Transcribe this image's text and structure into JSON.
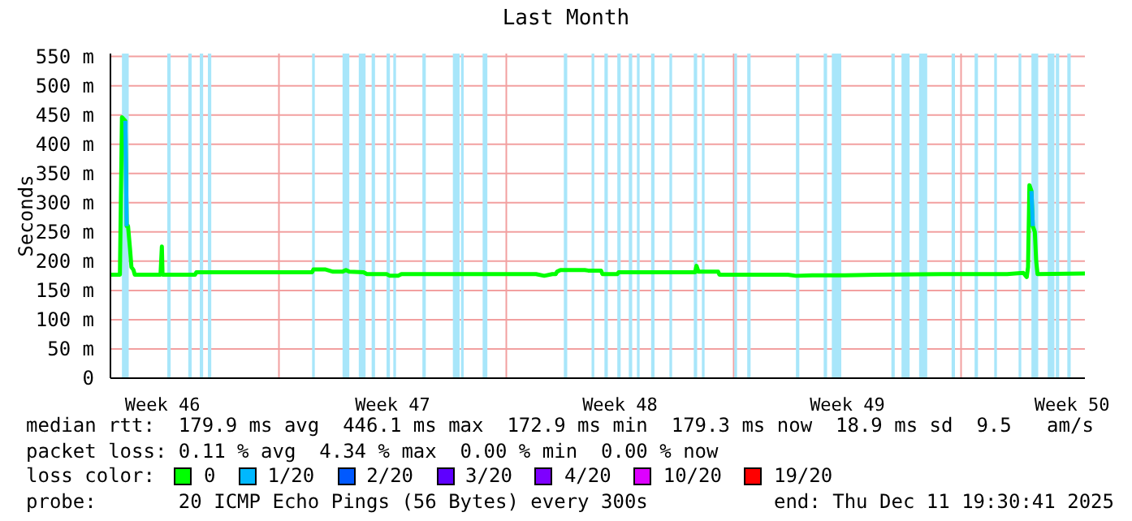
{
  "chart_data": {
    "type": "line",
    "title": "Last Month",
    "ylabel": "Seconds",
    "x": [
      "2025-11-11T19:30",
      "2025-11-12T02:30",
      "2025-11-12T04:00",
      "2025-11-12T06:30",
      "2025-11-12T07:30",
      "2025-11-12T08:30",
      "2025-11-12T10:00",
      "2025-11-12T11:00",
      "2025-11-12T12:30",
      "2025-11-12T13:30",
      "2025-11-13T08:30",
      "2025-11-13T09:30",
      "2025-11-13T10:00",
      "2025-11-14T10:00",
      "2025-11-14T11:00",
      "2025-11-18T00:30",
      "2025-11-18T01:30",
      "2025-11-18T10:00",
      "2025-11-18T16:00",
      "2025-11-18T23:00",
      "2025-11-19T01:30",
      "2025-11-19T04:00",
      "2025-11-19T14:30",
      "2025-11-19T17:00",
      "2025-11-20T07:30",
      "2025-11-20T10:00",
      "2025-11-20T16:00",
      "2025-11-20T18:30",
      "2025-11-24T22:00",
      "2025-11-25T04:00",
      "2025-11-25T10:00",
      "2025-11-25T12:30",
      "2025-11-25T13:30",
      "2025-11-25T16:00",
      "2025-11-26T10:00",
      "2025-11-26T12:30",
      "2025-11-26T22:00",
      "2025-11-26T23:00",
      "2025-11-27T10:00",
      "2025-11-27T11:00",
      "2025-11-29T19:30",
      "2025-11-29T20:30",
      "2025-11-29T22:00",
      "2025-11-30T12:30",
      "2025-11-30T13:30",
      "2025-12-02T16:00",
      "2025-12-02T22:00",
      "2025-12-03T10:00",
      "2025-12-04T10:00",
      "2025-12-05T10:00",
      "2025-12-07T10:00",
      "2025-12-09T10:00",
      "2025-12-09T22:00",
      "2025-12-10T00:30",
      "2025-12-10T01:30",
      "2025-12-10T02:30",
      "2025-12-10T04:00",
      "2025-12-10T05:00",
      "2025-12-10T06:30",
      "2025-12-10T07:30",
      "2025-12-10T08:30",
      "2025-12-11T19:30"
    ],
    "series": [
      {
        "name": "0",
        "color": "#00ff00",
        "values": [
          177,
          177,
          446,
          440,
          260,
          260,
          220,
          190,
          185,
          177,
          177,
          225,
          177,
          177,
          181,
          181,
          186,
          186,
          182,
          182,
          185,
          182,
          181,
          178,
          178,
          175,
          175,
          178,
          178,
          175,
          178,
          178,
          182,
          185,
          185,
          184,
          184,
          178,
          178,
          181,
          181,
          192,
          182,
          182,
          177,
          177,
          175,
          176,
          176,
          177,
          178,
          178,
          180,
          173,
          190,
          330,
          320,
          260,
          250,
          200,
          178,
          179
        ]
      },
      {
        "name": "1/20",
        "color": "#00b8ff",
        "x": [
          "2025-11-12T06:30",
          "2025-11-12T07:30",
          "2025-11-12T10:00",
          "2025-12-10T04:00",
          "2025-12-10T05:00"
        ],
        "values": [
          440,
          260,
          null,
          320,
          260
        ]
      },
      {
        "name": "2/20",
        "color": "#0059ff",
        "values": [
          null,
          null,
          null,
          null,
          null,
          null,
          null,
          null,
          null,
          null,
          null,
          null,
          null,
          null,
          null,
          null,
          null,
          null,
          null,
          null,
          null,
          null,
          null,
          null,
          null,
          null,
          null,
          null,
          null,
          null,
          null,
          null,
          null,
          null,
          null,
          null,
          null,
          null,
          null,
          null,
          null,
          null,
          null,
          null,
          null,
          null,
          null,
          null,
          null,
          null,
          null,
          null,
          null,
          null,
          null,
          null,
          null,
          null,
          null,
          null,
          null,
          null
        ]
      },
      {
        "name": "3/20",
        "color": "#5e00ff",
        "values": [
          null,
          null,
          null,
          null,
          null,
          null,
          null,
          null,
          null,
          null,
          null,
          null,
          null,
          null,
          null,
          null,
          null,
          null,
          null,
          null,
          null,
          null,
          null,
          null,
          null,
          null,
          null,
          null,
          null,
          null,
          null,
          null,
          null,
          null,
          null,
          null,
          null,
          null,
          null,
          null,
          null,
          null,
          null,
          null,
          null,
          null,
          null,
          null,
          null,
          null,
          null,
          null,
          null,
          null,
          null,
          null,
          null,
          null,
          null,
          null,
          null,
          null
        ]
      },
      {
        "name": "4/20",
        "color": "#7e00ff",
        "values": [
          null,
          null,
          null,
          null,
          null,
          null,
          null,
          null,
          null,
          null,
          null,
          null,
          null,
          null,
          null,
          null,
          null,
          null,
          null,
          null,
          null,
          null,
          null,
          null,
          null,
          null,
          null,
          null,
          null,
          null,
          null,
          null,
          null,
          null,
          null,
          null,
          null,
          null,
          null,
          null,
          null,
          null,
          null,
          null,
          null,
          null,
          null,
          null,
          null,
          null,
          null,
          null,
          null,
          null,
          null,
          null,
          null,
          null,
          null,
          null,
          null,
          null
        ]
      },
      {
        "name": "10/20",
        "color": "#dd00ff",
        "values": [
          null,
          null,
          null,
          null,
          null,
          null,
          null,
          null,
          null,
          null,
          null,
          null,
          null,
          null,
          null,
          null,
          null,
          null,
          null,
          null,
          null,
          null,
          null,
          null,
          null,
          null,
          null,
          null,
          null,
          null,
          null,
          null,
          null,
          null,
          null,
          null,
          null,
          null,
          null,
          null,
          null,
          null,
          null,
          null,
          null,
          null,
          null,
          null,
          null,
          null,
          null,
          null,
          null,
          null,
          null,
          null,
          null,
          null,
          null,
          null,
          null,
          null
        ]
      },
      {
        "name": "19/20",
        "color": "#ff0000",
        "values": [
          null,
          null,
          null,
          null,
          null,
          null,
          null,
          null,
          null,
          null,
          null,
          null,
          null,
          null,
          null,
          null,
          null,
          null,
          null,
          null,
          null,
          null,
          null,
          null,
          null,
          null,
          null,
          null,
          null,
          null,
          null,
          null,
          null,
          null,
          null,
          null,
          null,
          null,
          null,
          null,
          null,
          null,
          null,
          null,
          null,
          null,
          null,
          null,
          null,
          null,
          null,
          null,
          null,
          null,
          null,
          null,
          null,
          null,
          null,
          null,
          null,
          null
        ]
      }
    ],
    "legend": "bottom",
    "legend_title": "loss color:",
    "xlim": [
      "2025-11-11T19:30",
      "2025-12-11T19:30"
    ],
    "xticks": [
      {
        "value": "2025-11-13T10:00",
        "label": "Week 46"
      },
      {
        "value": "2025-11-17",
        "label": null
      },
      {
        "value": "2025-11-20T12:00",
        "label": "Week 47"
      },
      {
        "value": "2025-11-24",
        "label": null
      },
      {
        "value": "2025-11-27T12:00",
        "label": "Week 48"
      },
      {
        "value": "2025-12-01",
        "label": null
      },
      {
        "value": "2025-12-04T12:00",
        "label": "Week 49"
      },
      {
        "value": "2025-12-08",
        "label": null
      },
      {
        "value": "2025-12-11T10:00",
        "label": "Week 50"
      }
    ],
    "ylim": [
      0,
      555
    ],
    "yticks": [
      {
        "value": 0,
        "label": "0"
      },
      {
        "value": 50,
        "label": "50 m"
      },
      {
        "value": 100,
        "label": "100 m"
      },
      {
        "value": 150,
        "label": "150 m"
      },
      {
        "value": 200,
        "label": "200 m"
      },
      {
        "value": 250,
        "label": "250 m"
      },
      {
        "value": 300,
        "label": "300 m"
      },
      {
        "value": 350,
        "label": "350 m"
      },
      {
        "value": 400,
        "label": "400 m"
      },
      {
        "value": 450,
        "label": "450 m"
      },
      {
        "value": 500,
        "label": "500 m"
      },
      {
        "value": 550,
        "label": "550 m"
      }
    ],
    "grid": true,
    "bands": [
      {
        "axis": "x",
        "from": "2025-11-12T04:00",
        "to": "2025-11-12T09:00",
        "color": "#a8e6fa"
      },
      {
        "axis": "x",
        "from": "2025-11-13T13:30",
        "to": "2025-11-13T16:00",
        "color": "#a8e6fa"
      },
      {
        "axis": "x",
        "from": "2025-11-14T05:00",
        "to": "2025-11-14T07:30",
        "color": "#a8e6fa"
      },
      {
        "axis": "x",
        "from": "2025-11-14T13:30",
        "to": "2025-11-14T16:00",
        "color": "#a8e6fa"
      },
      {
        "axis": "x",
        "from": "2025-11-14T19:30",
        "to": "2025-11-14T22:00",
        "color": "#a8e6fa"
      },
      {
        "axis": "x",
        "from": "2025-11-18T00:30",
        "to": "2025-11-18T02:30",
        "color": "#a8e6fa"
      },
      {
        "axis": "x",
        "from": "2025-11-18T23:00",
        "to": "2025-11-19T04:00",
        "color": "#a8e6fa"
      },
      {
        "axis": "x",
        "from": "2025-11-19T11:00",
        "to": "2025-11-19T16:00",
        "color": "#a8e6fa"
      },
      {
        "axis": "x",
        "from": "2025-11-19T20:30",
        "to": "2025-11-19T23:00",
        "color": "#a8e6fa"
      },
      {
        "axis": "x",
        "from": "2025-11-20T07:30",
        "to": "2025-11-20T10:00",
        "color": "#a8e6fa"
      },
      {
        "axis": "x",
        "from": "2025-11-20T12:30",
        "to": "2025-11-20T14:30",
        "color": "#a8e6fa"
      },
      {
        "axis": "x",
        "from": "2025-11-21T10:00",
        "to": "2025-11-21T12:30",
        "color": "#a8e6fa"
      },
      {
        "axis": "x",
        "from": "2025-11-22T08:30",
        "to": "2025-11-22T13:30",
        "color": "#a8e6fa"
      },
      {
        "axis": "x",
        "from": "2025-11-22T14:30",
        "to": "2025-11-22T16:30",
        "color": "#a8e6fa"
      },
      {
        "axis": "x",
        "from": "2025-11-23T06:30",
        "to": "2025-11-23T10:00",
        "color": "#a8e6fa"
      },
      {
        "axis": "x",
        "from": "2025-11-25T18:30",
        "to": "2025-11-25T21:00",
        "color": "#a8e6fa"
      },
      {
        "axis": "x",
        "from": "2025-11-26T15:00",
        "to": "2025-11-26T17:00",
        "color": "#a8e6fa"
      },
      {
        "axis": "x",
        "from": "2025-11-27T00:30",
        "to": "2025-11-27T03:00",
        "color": "#a8e6fa"
      },
      {
        "axis": "x",
        "from": "2025-11-27T10:00",
        "to": "2025-11-27T12:30",
        "color": "#a8e6fa"
      },
      {
        "axis": "x",
        "from": "2025-11-27T18:30",
        "to": "2025-11-27T21:00",
        "color": "#a8e6fa"
      },
      {
        "axis": "x",
        "from": "2025-11-28T00:30",
        "to": "2025-11-28T02:30",
        "color": "#a8e6fa"
      },
      {
        "axis": "x",
        "from": "2025-11-28T11:00",
        "to": "2025-11-28T13:30",
        "color": "#a8e6fa"
      },
      {
        "axis": "x",
        "from": "2025-11-29T00:30",
        "to": "2025-11-29T02:30",
        "color": "#a8e6fa"
      },
      {
        "axis": "x",
        "from": "2025-11-29T18:30",
        "to": "2025-11-29T21:00",
        "color": "#a8e6fa"
      },
      {
        "axis": "x",
        "from": "2025-11-30T00:30",
        "to": "2025-11-30T02:30",
        "color": "#a8e6fa"
      },
      {
        "axis": "x",
        "from": "2025-12-01T00:30",
        "to": "2025-12-01T02:30",
        "color": "#a8e6fa"
      },
      {
        "axis": "x",
        "from": "2025-12-01T10:00",
        "to": "2025-12-01T12:30",
        "color": "#a8e6fa"
      },
      {
        "axis": "x",
        "from": "2025-12-02T22:00",
        "to": "2025-12-03T00:30",
        "color": "#a8e6fa"
      },
      {
        "axis": "x",
        "from": "2025-12-03T18:30",
        "to": "2025-12-03T21:00",
        "color": "#a8e6fa"
      },
      {
        "axis": "x",
        "from": "2025-12-04T00:30",
        "to": "2025-12-04T07:30",
        "color": "#a8e6fa"
      },
      {
        "axis": "x",
        "from": "2025-12-05T20:30",
        "to": "2025-12-05T23:00",
        "color": "#a8e6fa"
      },
      {
        "axis": "x",
        "from": "2025-12-06T04:00",
        "to": "2025-12-06T10:00",
        "color": "#a8e6fa"
      },
      {
        "axis": "x",
        "from": "2025-12-06T17:00",
        "to": "2025-12-06T23:00",
        "color": "#a8e6fa"
      },
      {
        "axis": "x",
        "from": "2025-12-07T17:00",
        "to": "2025-12-07T19:30",
        "color": "#a8e6fa"
      },
      {
        "axis": "x",
        "from": "2025-12-08T10:00",
        "to": "2025-12-08T12:30",
        "color": "#a8e6fa"
      },
      {
        "axis": "x",
        "from": "2025-12-09T00:30",
        "to": "2025-12-09T02:30",
        "color": "#a8e6fa"
      },
      {
        "axis": "x",
        "from": "2025-12-09T18:30",
        "to": "2025-12-09T20:30",
        "color": "#a8e6fa"
      },
      {
        "axis": "x",
        "from": "2025-12-10T04:00",
        "to": "2025-12-10T09:00",
        "color": "#a8e6fa"
      },
      {
        "axis": "x",
        "from": "2025-12-10T16:00",
        "to": "2025-12-10T21:00",
        "color": "#a8e6fa"
      },
      {
        "axis": "x",
        "from": "2025-12-10T22:00",
        "to": "2025-12-11T00:30",
        "color": "#a8e6fa"
      },
      {
        "axis": "x",
        "from": "2025-12-11T06:30",
        "to": "2025-12-11T09:00",
        "color": "#a8e6fa"
      }
    ],
    "annotations": [
      "median rtt:  179.9 ms avg  446.1 ms max  172.9 ms min  179.3 ms now  18.9 ms sd  9.5   am/s",
      "packet loss: 0.11 % avg  4.34 % max  0.00 % min  0.00 % now",
      "probe:       20 ICMP Echo Pings (56 Bytes) every 300s",
      "end: Thu Dec 11 19:30:41 2025"
    ]
  }
}
